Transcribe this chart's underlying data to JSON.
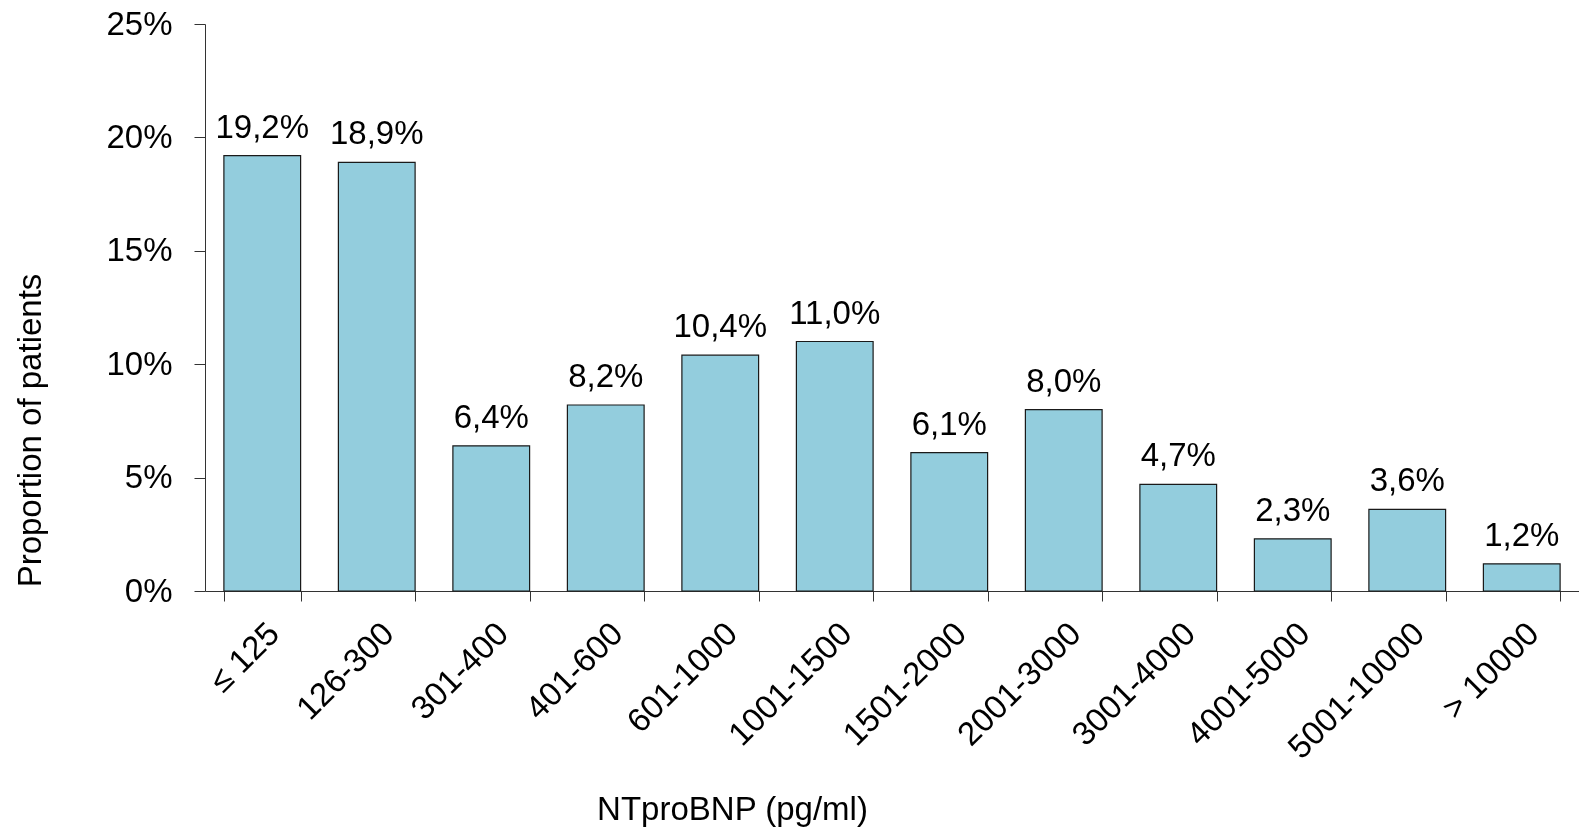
{
  "chart_data": {
    "type": "bar",
    "xlabel": "NTproBNP (pg/ml)",
    "ylabel": "Proportion of patients",
    "categories": [
      "≤ 125",
      "126-300",
      "301-400",
      "401-600",
      "601-1000",
      "1001-1500",
      "1501-2000",
      "2001-3000",
      "3001-4000",
      "4001-5000",
      "5001-10000",
      "> 10000"
    ],
    "values": [
      19.2,
      18.9,
      6.4,
      8.2,
      10.4,
      11.0,
      6.1,
      8.0,
      4.7,
      2.3,
      3.6,
      1.2
    ],
    "value_labels": [
      "19,2%",
      "18,9%",
      "6,4%",
      "8,2%",
      "10,4%",
      "11,0%",
      "6,1%",
      "8,0%",
      "4,7%",
      "2,3%",
      "3,6%",
      "1,2%"
    ],
    "color": "#93cddd",
    "ylim": [
      0,
      25
    ],
    "yticks": [
      {
        "value": 0,
        "label": "0%"
      },
      {
        "value": 5,
        "label": "5%"
      },
      {
        "value": 10,
        "label": "10%"
      },
      {
        "value": 15,
        "label": "15%"
      },
      {
        "value": 20,
        "label": "20%"
      },
      {
        "value": 25,
        "label": "25%"
      }
    ]
  }
}
